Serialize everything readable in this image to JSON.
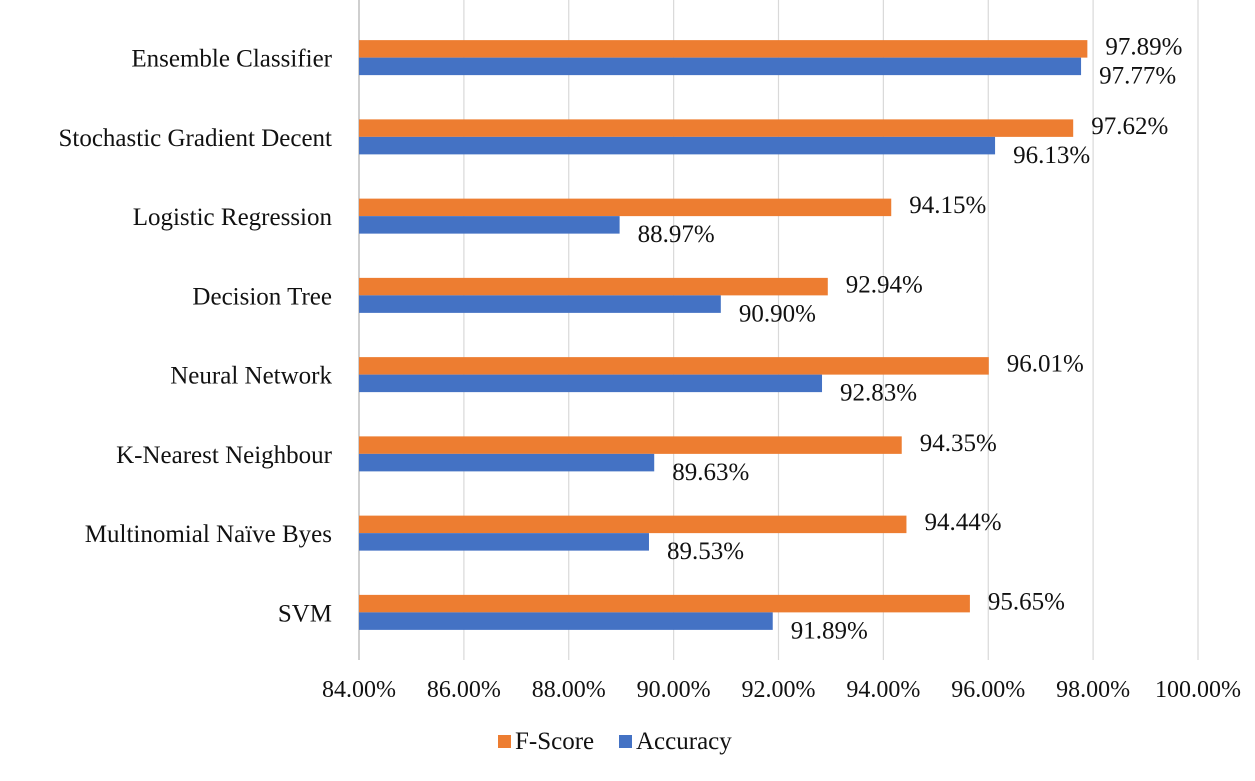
{
  "chart_data": {
    "type": "bar",
    "orientation": "horizontal",
    "categories": [
      "Ensemble Classifier",
      "Stochastic Gradient Decent",
      "Logistic Regression",
      "Decision Tree",
      "Neural Network",
      "K-Nearest Neighbour",
      "Multinomial Naïve Byes",
      "SVM"
    ],
    "series": [
      {
        "name": "F-Score",
        "color": "#ed7d31",
        "values": [
          97.89,
          97.62,
          94.15,
          92.94,
          96.01,
          94.35,
          94.44,
          95.65
        ],
        "labels": [
          "97.89%",
          "97.62%",
          "94.15%",
          "92.94%",
          "96.01%",
          "94.35%",
          "94.44%",
          "95.65%"
        ]
      },
      {
        "name": "Accuracy",
        "color": "#4472c4",
        "values": [
          97.77,
          96.13,
          88.97,
          90.9,
          92.83,
          89.63,
          89.53,
          91.89
        ],
        "labels": [
          "97.77%",
          "96.13%",
          "88.97%",
          "90.90%",
          "92.83%",
          "89.63%",
          "89.53%",
          "91.89%"
        ]
      }
    ],
    "xlim": [
      84,
      100
    ],
    "xticks": [
      84,
      86,
      88,
      90,
      92,
      94,
      96,
      98,
      100
    ],
    "xtick_labels": [
      "84.00%",
      "86.00%",
      "88.00%",
      "90.00%",
      "92.00%",
      "94.00%",
      "96.00%",
      "98.00%",
      "100.00%"
    ],
    "grid": true,
    "gridline_color": "#d9d9d9",
    "legend": {
      "position": "bottom",
      "entries": [
        "F-Score",
        "Accuracy"
      ]
    }
  }
}
